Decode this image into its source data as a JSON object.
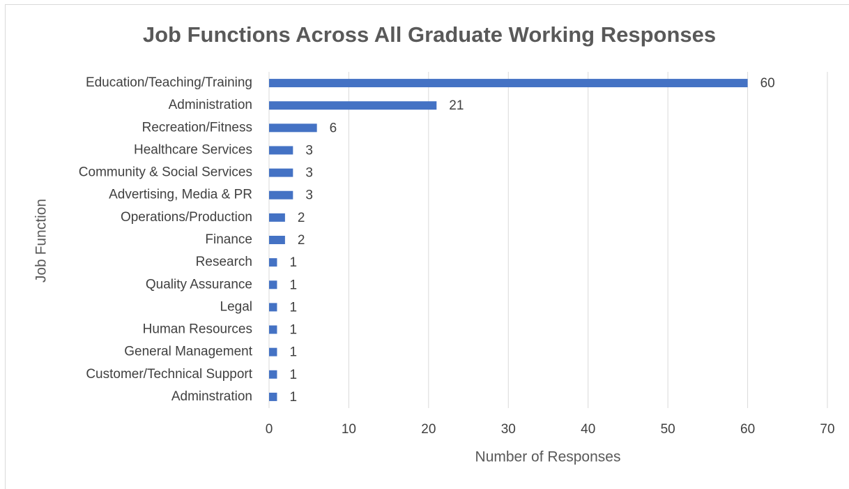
{
  "chart_data": {
    "type": "bar",
    "orientation": "horizontal",
    "title": "Job Functions Across All Graduate Working Responses",
    "xlabel": "Number of Responses",
    "ylabel": "Job Function",
    "categories": [
      "Education/Teaching/Training",
      "Administration",
      "Recreation/Fitness",
      "Healthcare Services",
      "Community & Social Services",
      "Advertising, Media & PR",
      "Operations/Production",
      "Finance",
      "Research",
      "Quality Assurance",
      "Legal",
      "Human Resources",
      "General Management",
      "Customer/Technical Support",
      "Adminstration"
    ],
    "values": [
      60,
      21,
      6,
      3,
      3,
      3,
      2,
      2,
      1,
      1,
      1,
      1,
      1,
      1,
      1
    ],
    "color": "#4472c4",
    "xlim": [
      0,
      70
    ],
    "xticks": [
      0,
      10,
      20,
      30,
      40,
      50,
      60,
      70
    ],
    "grid": true
  }
}
